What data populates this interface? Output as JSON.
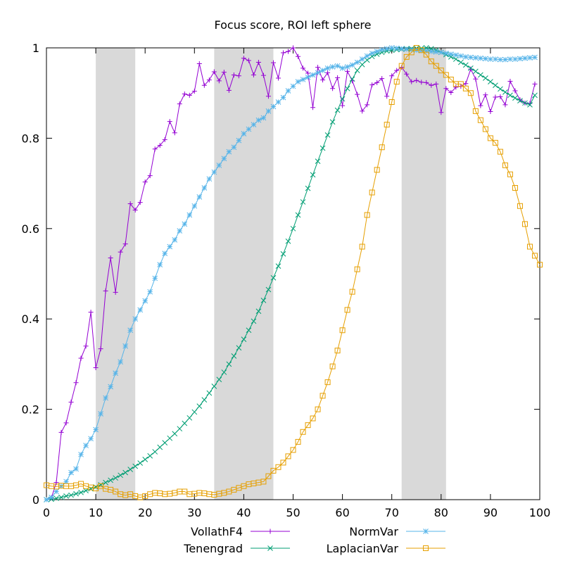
{
  "chart_data": {
    "type": "line",
    "title": "Focus score, ROI left sphere",
    "xlim": [
      0,
      100
    ],
    "ylim": [
      0,
      1
    ],
    "x_ticks": [
      0,
      10,
      20,
      30,
      40,
      50,
      60,
      70,
      80,
      90,
      100
    ],
    "y_ticks": [
      0,
      0.2,
      0.4,
      0.6,
      0.8,
      1
    ],
    "x_tick_labels": [
      "0",
      "10",
      "20",
      "30",
      "40",
      "50",
      "60",
      "70",
      "80",
      "90",
      "100"
    ],
    "y_tick_labels": [
      "0",
      "0.2",
      "0.4",
      "0.6",
      "0.8",
      "1"
    ],
    "grid": false,
    "legend_position": "bottom",
    "shaded_x_ranges": [
      [
        10,
        18
      ],
      [
        34,
        46
      ],
      [
        72,
        81
      ]
    ],
    "shade_color": "#d9d9d9",
    "series": [
      {
        "name": "VollathF4",
        "color": "#9400d3",
        "marker": "plus",
        "values": [
          0.0,
          0.004,
          0.038,
          0.149,
          0.17,
          0.216,
          0.259,
          0.313,
          0.34,
          0.415,
          0.292,
          0.334,
          0.462,
          0.535,
          0.459,
          0.548,
          0.566,
          0.655,
          0.641,
          0.658,
          0.703,
          0.717,
          0.776,
          0.784,
          0.797,
          0.837,
          0.812,
          0.876,
          0.898,
          0.895,
          0.904,
          0.965,
          0.917,
          0.929,
          0.947,
          0.927,
          0.946,
          0.906,
          0.94,
          0.938,
          0.977,
          0.972,
          0.94,
          0.968,
          0.939,
          0.893,
          0.967,
          0.933,
          0.989,
          0.992,
          1.0,
          0.981,
          0.955,
          0.944,
          0.868,
          0.957,
          0.929,
          0.945,
          0.91,
          0.934,
          0.872,
          0.948,
          0.927,
          0.897,
          0.86,
          0.874,
          0.918,
          0.923,
          0.932,
          0.893,
          0.938,
          0.95,
          0.957,
          0.942,
          0.925,
          0.928,
          0.924,
          0.923,
          0.917,
          0.92,
          0.857,
          0.91,
          0.901,
          0.913,
          0.915,
          0.921,
          0.953,
          0.931,
          0.872,
          0.896,
          0.859,
          0.891,
          0.892,
          0.874,
          0.926,
          0.905,
          0.885,
          0.878,
          0.877,
          0.92
        ]
      },
      {
        "name": "Tenengrad",
        "color": "#009e73",
        "marker": "x",
        "values": [
          0.0,
          0.001,
          0.003,
          0.005,
          0.008,
          0.01,
          0.013,
          0.016,
          0.02,
          0.024,
          0.028,
          0.033,
          0.038,
          0.043,
          0.048,
          0.054,
          0.06,
          0.067,
          0.074,
          0.081,
          0.089,
          0.097,
          0.106,
          0.116,
          0.126,
          0.136,
          0.146,
          0.157,
          0.169,
          0.181,
          0.194,
          0.207,
          0.221,
          0.236,
          0.251,
          0.266,
          0.282,
          0.3,
          0.318,
          0.336,
          0.355,
          0.375,
          0.395,
          0.417,
          0.441,
          0.465,
          0.491,
          0.517,
          0.544,
          0.572,
          0.6,
          0.63,
          0.659,
          0.689,
          0.719,
          0.749,
          0.778,
          0.807,
          0.836,
          0.862,
          0.887,
          0.91,
          0.931,
          0.95,
          0.963,
          0.973,
          0.981,
          0.986,
          0.99,
          0.993,
          0.995,
          0.996,
          0.997,
          0.998,
          0.998,
          0.999,
          0.999,
          1.0,
          0.998,
          0.995,
          0.99,
          0.985,
          0.98,
          0.975,
          0.968,
          0.962,
          0.955,
          0.948,
          0.94,
          0.933,
          0.925,
          0.917,
          0.909,
          0.902,
          0.895,
          0.889,
          0.883,
          0.878,
          0.874,
          0.895
        ]
      },
      {
        "name": "NormVar",
        "color": "#56b4e9",
        "marker": "star",
        "values": [
          0.0,
          0.005,
          0.018,
          0.03,
          0.04,
          0.06,
          0.068,
          0.1,
          0.12,
          0.135,
          0.155,
          0.19,
          0.225,
          0.25,
          0.28,
          0.305,
          0.34,
          0.375,
          0.4,
          0.42,
          0.44,
          0.46,
          0.49,
          0.52,
          0.545,
          0.56,
          0.575,
          0.595,
          0.61,
          0.63,
          0.65,
          0.67,
          0.69,
          0.71,
          0.725,
          0.74,
          0.755,
          0.77,
          0.78,
          0.795,
          0.81,
          0.82,
          0.83,
          0.84,
          0.845,
          0.86,
          0.87,
          0.88,
          0.89,
          0.905,
          0.915,
          0.925,
          0.93,
          0.935,
          0.94,
          0.945,
          0.95,
          0.955,
          0.958,
          0.96,
          0.955,
          0.958,
          0.962,
          0.968,
          0.975,
          0.982,
          0.988,
          0.992,
          0.996,
          0.998,
          1.0,
          0.999,
          0.998,
          0.997,
          0.996,
          0.995,
          0.994,
          0.993,
          0.992,
          0.991,
          0.99,
          0.988,
          0.986,
          0.984,
          0.982,
          0.98,
          0.979,
          0.978,
          0.977,
          0.976,
          0.975,
          0.975,
          0.974,
          0.974,
          0.975,
          0.975,
          0.976,
          0.977,
          0.978,
          0.979
        ]
      },
      {
        "name": "LaplacianVar",
        "color": "#e69f00",
        "marker": "square",
        "values": [
          0.032,
          0.03,
          0.029,
          0.031,
          0.03,
          0.03,
          0.032,
          0.035,
          0.03,
          0.027,
          0.025,
          0.03,
          0.024,
          0.022,
          0.018,
          0.012,
          0.01,
          0.012,
          0.008,
          0.005,
          0.008,
          0.012,
          0.015,
          0.014,
          0.012,
          0.013,
          0.015,
          0.018,
          0.018,
          0.012,
          0.013,
          0.015,
          0.014,
          0.012,
          0.011,
          0.013,
          0.015,
          0.018,
          0.022,
          0.026,
          0.03,
          0.034,
          0.036,
          0.038,
          0.04,
          0.052,
          0.064,
          0.072,
          0.082,
          0.096,
          0.11,
          0.128,
          0.15,
          0.165,
          0.18,
          0.2,
          0.23,
          0.26,
          0.295,
          0.33,
          0.375,
          0.42,
          0.46,
          0.51,
          0.56,
          0.63,
          0.68,
          0.73,
          0.78,
          0.83,
          0.88,
          0.925,
          0.96,
          0.98,
          0.99,
          1.0,
          0.995,
          0.985,
          0.97,
          0.96,
          0.95,
          0.94,
          0.93,
          0.92,
          0.92,
          0.91,
          0.9,
          0.86,
          0.84,
          0.82,
          0.8,
          0.79,
          0.77,
          0.74,
          0.72,
          0.69,
          0.65,
          0.61,
          0.56,
          0.54,
          0.52
        ]
      }
    ]
  }
}
